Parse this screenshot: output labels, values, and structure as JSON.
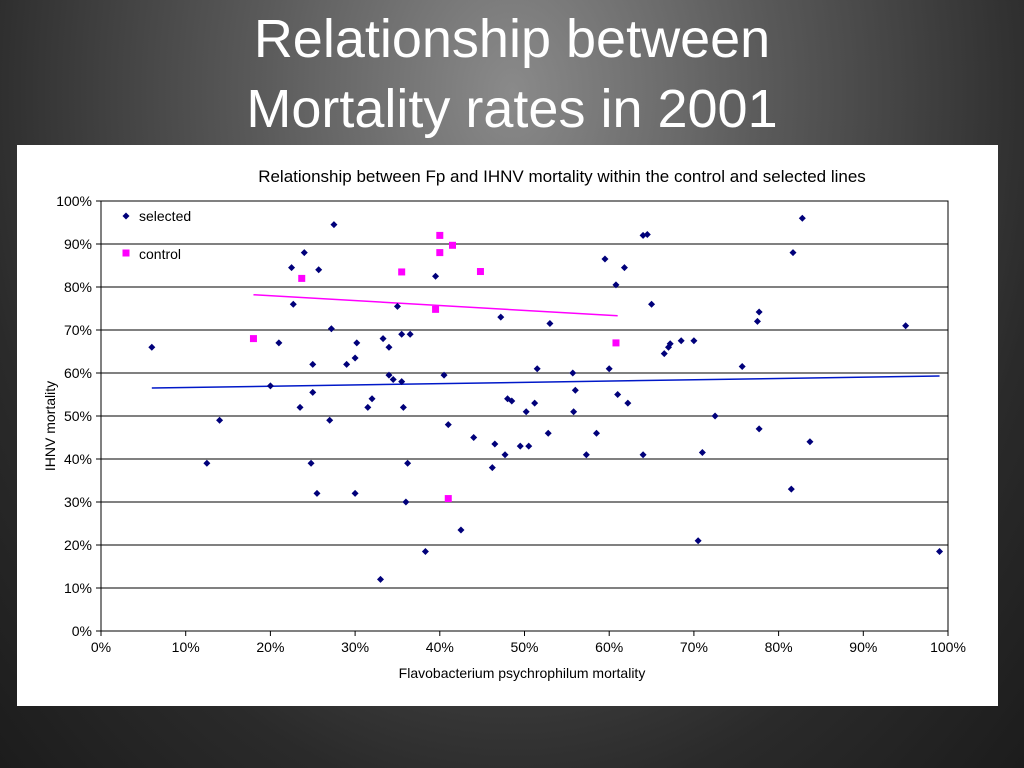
{
  "slide": {
    "title_line1": "Relationship between",
    "title_line2": "Mortality rates in 2001"
  },
  "chart_data": {
    "type": "scatter",
    "title": "Relationship between Fp and IHNV mortality within the control and selected lines",
    "xlabel": "Flavobacterium psychrophilum mortality",
    "ylabel": "IHNV mortality",
    "xlim": [
      0,
      1
    ],
    "ylim": [
      0,
      1
    ],
    "x_ticks": [
      "0%",
      "10%",
      "20%",
      "30%",
      "40%",
      "50%",
      "60%",
      "70%",
      "80%",
      "90%",
      "100%"
    ],
    "y_ticks": [
      "0%",
      "10%",
      "20%",
      "30%",
      "40%",
      "50%",
      "60%",
      "70%",
      "80%",
      "90%",
      "100%"
    ],
    "grid": "horizontal",
    "legend_position": "top-left",
    "series": [
      {
        "name": "selected",
        "color": "#00007a",
        "marker": "diamond",
        "points": [
          [
            0.06,
            0.66
          ],
          [
            0.125,
            0.39
          ],
          [
            0.14,
            0.49
          ],
          [
            0.2,
            0.57
          ],
          [
            0.21,
            0.67
          ],
          [
            0.225,
            0.845
          ],
          [
            0.227,
            0.76
          ],
          [
            0.235,
            0.52
          ],
          [
            0.24,
            0.88
          ],
          [
            0.248,
            0.39
          ],
          [
            0.25,
            0.62
          ],
          [
            0.25,
            0.555
          ],
          [
            0.255,
            0.32
          ],
          [
            0.257,
            0.84
          ],
          [
            0.27,
            0.49
          ],
          [
            0.272,
            0.703
          ],
          [
            0.275,
            0.945
          ],
          [
            0.29,
            0.62
          ],
          [
            0.3,
            0.32
          ],
          [
            0.3,
            0.635
          ],
          [
            0.302,
            0.67
          ],
          [
            0.315,
            0.52
          ],
          [
            0.32,
            0.54
          ],
          [
            0.33,
            0.12
          ],
          [
            0.333,
            0.68
          ],
          [
            0.34,
            0.66
          ],
          [
            0.34,
            0.595
          ],
          [
            0.345,
            0.585
          ],
          [
            0.35,
            0.755
          ],
          [
            0.355,
            0.69
          ],
          [
            0.355,
            0.58
          ],
          [
            0.357,
            0.52
          ],
          [
            0.36,
            0.3
          ],
          [
            0.362,
            0.39
          ],
          [
            0.365,
            0.69
          ],
          [
            0.383,
            0.185
          ],
          [
            0.395,
            0.825
          ],
          [
            0.405,
            0.595
          ],
          [
            0.41,
            0.48
          ],
          [
            0.425,
            0.235
          ],
          [
            0.44,
            0.45
          ],
          [
            0.462,
            0.38
          ],
          [
            0.465,
            0.435
          ],
          [
            0.472,
            0.73
          ],
          [
            0.477,
            0.41
          ],
          [
            0.48,
            0.54
          ],
          [
            0.485,
            0.535
          ],
          [
            0.495,
            0.43
          ],
          [
            0.502,
            0.51
          ],
          [
            0.505,
            0.43
          ],
          [
            0.512,
            0.53
          ],
          [
            0.515,
            0.61
          ],
          [
            0.528,
            0.46
          ],
          [
            0.53,
            0.715
          ],
          [
            0.557,
            0.6
          ],
          [
            0.558,
            0.51
          ],
          [
            0.56,
            0.56
          ],
          [
            0.573,
            0.41
          ],
          [
            0.585,
            0.46
          ],
          [
            0.595,
            0.865
          ],
          [
            0.6,
            0.61
          ],
          [
            0.608,
            0.805
          ],
          [
            0.61,
            0.55
          ],
          [
            0.618,
            0.845
          ],
          [
            0.622,
            0.53
          ],
          [
            0.64,
            0.92
          ],
          [
            0.64,
            0.41
          ],
          [
            0.645,
            0.922
          ],
          [
            0.65,
            0.76
          ],
          [
            0.665,
            0.645
          ],
          [
            0.67,
            0.66
          ],
          [
            0.672,
            0.668
          ],
          [
            0.685,
            0.675
          ],
          [
            0.7,
            0.675
          ],
          [
            0.705,
            0.21
          ],
          [
            0.71,
            0.415
          ],
          [
            0.725,
            0.5
          ],
          [
            0.757,
            0.615
          ],
          [
            0.775,
            0.72
          ],
          [
            0.777,
            0.742
          ],
          [
            0.777,
            0.47
          ],
          [
            0.815,
            0.33
          ],
          [
            0.817,
            0.88
          ],
          [
            0.828,
            0.96
          ],
          [
            0.837,
            0.44
          ],
          [
            0.95,
            0.71
          ],
          [
            0.99,
            0.185
          ]
        ],
        "trendline": {
          "x": [
            0.06,
            0.99
          ],
          "y": [
            0.565,
            0.593
          ],
          "color": "#0018c8"
        }
      },
      {
        "name": "control",
        "color": "#ff00ff",
        "marker": "square",
        "points": [
          [
            0.18,
            0.68
          ],
          [
            0.237,
            0.82
          ],
          [
            0.355,
            0.835
          ],
          [
            0.395,
            0.748
          ],
          [
            0.4,
            0.88
          ],
          [
            0.4,
            0.92
          ],
          [
            0.41,
            0.308
          ],
          [
            0.415,
            0.897
          ],
          [
            0.448,
            0.836
          ],
          [
            0.608,
            0.67
          ]
        ],
        "trendline": {
          "x": [
            0.18,
            0.61
          ],
          "y": [
            0.782,
            0.733
          ],
          "color": "#ff00ff"
        }
      }
    ]
  }
}
